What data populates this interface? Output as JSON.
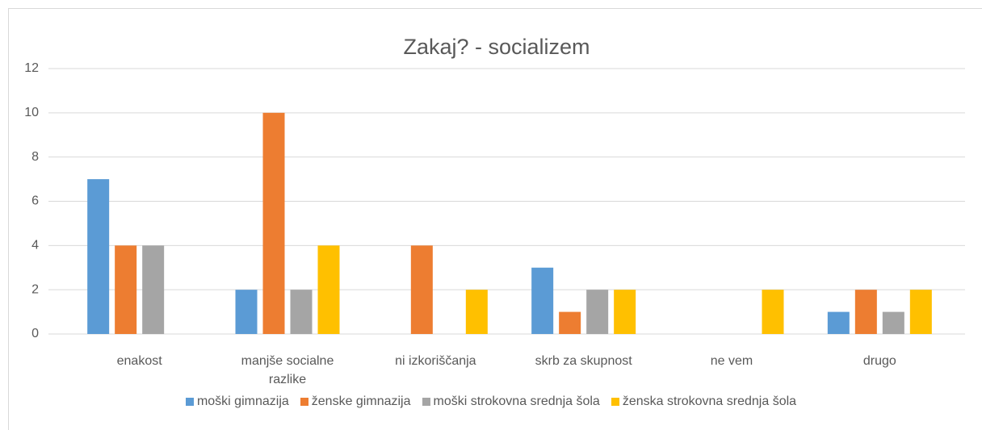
{
  "chart_data": {
    "type": "bar",
    "title": "Zakaj? - socializem",
    "categories": [
      "enakost",
      "manjše socialne razlike",
      "ni izkoriščanja",
      "skrb za skupnost",
      "ne vem",
      "drugo"
    ],
    "series": [
      {
        "name": "moški gimnazija",
        "color": "#5b9bd5",
        "values": [
          7,
          2,
          0,
          3,
          0,
          1
        ]
      },
      {
        "name": "ženske gimnazija",
        "color": "#ed7d31",
        "values": [
          4,
          10,
          4,
          1,
          0,
          2
        ]
      },
      {
        "name": "moški strokovna srednja šola",
        "color": "#a5a5a5",
        "values": [
          4,
          2,
          0,
          2,
          0,
          1
        ]
      },
      {
        "name": "ženska strokovna srednja šola",
        "color": "#ffc000",
        "values": [
          0,
          4,
          2,
          2,
          2,
          2
        ]
      }
    ],
    "ylim": [
      0,
      12
    ],
    "yticks": [
      0,
      2,
      4,
      6,
      8,
      10,
      12
    ],
    "grid": true,
    "legend": "bottom"
  }
}
